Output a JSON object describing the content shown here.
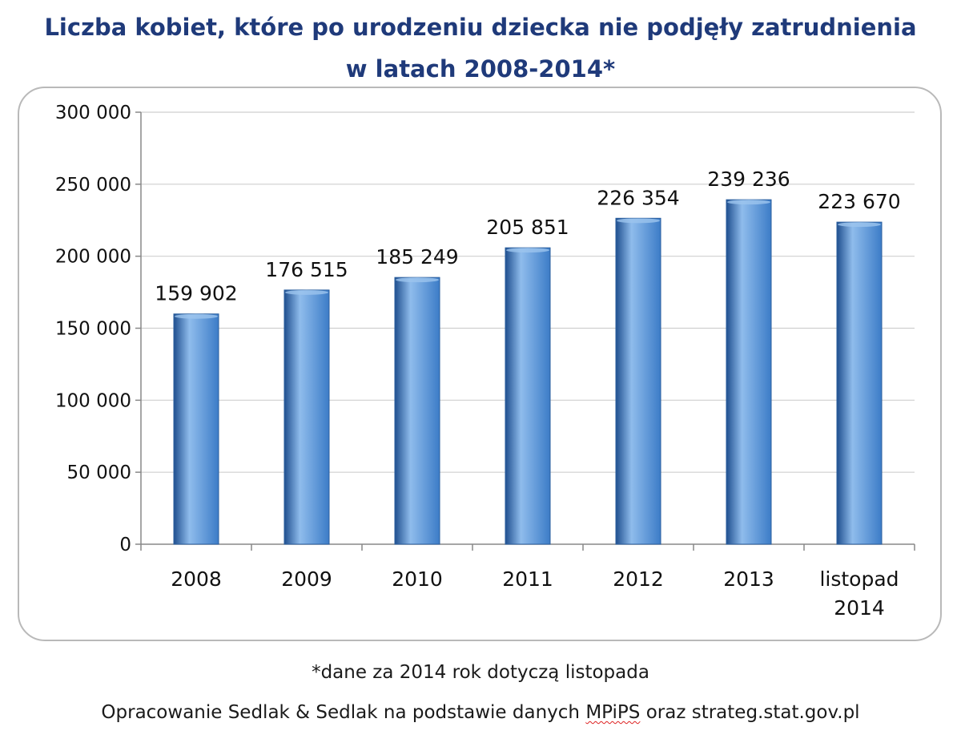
{
  "chart_data": {
    "type": "bar",
    "title_line1": "Liczba kobiet, które po urodzeniu dziecka nie podjęły zatrudnienia",
    "title_line2": "w latach 2008-2014*",
    "categories": [
      "2008",
      "2009",
      "2010",
      "2011",
      "2012",
      "2013",
      "listopad 2014"
    ],
    "values": [
      159902,
      176515,
      185249,
      205851,
      226354,
      239236,
      223670
    ],
    "value_labels": [
      "159 902",
      "176 515",
      "185 249",
      "205 851",
      "226 354",
      "239 236",
      "223 670"
    ],
    "y_ticks": [
      0,
      50000,
      100000,
      150000,
      200000,
      250000,
      300000
    ],
    "y_tick_labels": [
      "0",
      "50 000",
      "100 000",
      "150 000",
      "200 000",
      "250 000",
      "300 000"
    ],
    "ylim": [
      0,
      300000
    ],
    "grid": true,
    "legend": "none",
    "bar_color": "#3c7cc7",
    "bar_color_dark": "#1f4f8f",
    "bar_color_light": "#8fbcec"
  },
  "footnotes": {
    "note": "*dane za 2014 rok dotyczą listopada",
    "source_prefix": "Opracowanie Sedlak & Sedlak na podstawie danych ",
    "source_mpips": "MPiPS",
    "source_suffix": " oraz strateg.stat.gov.pl"
  }
}
